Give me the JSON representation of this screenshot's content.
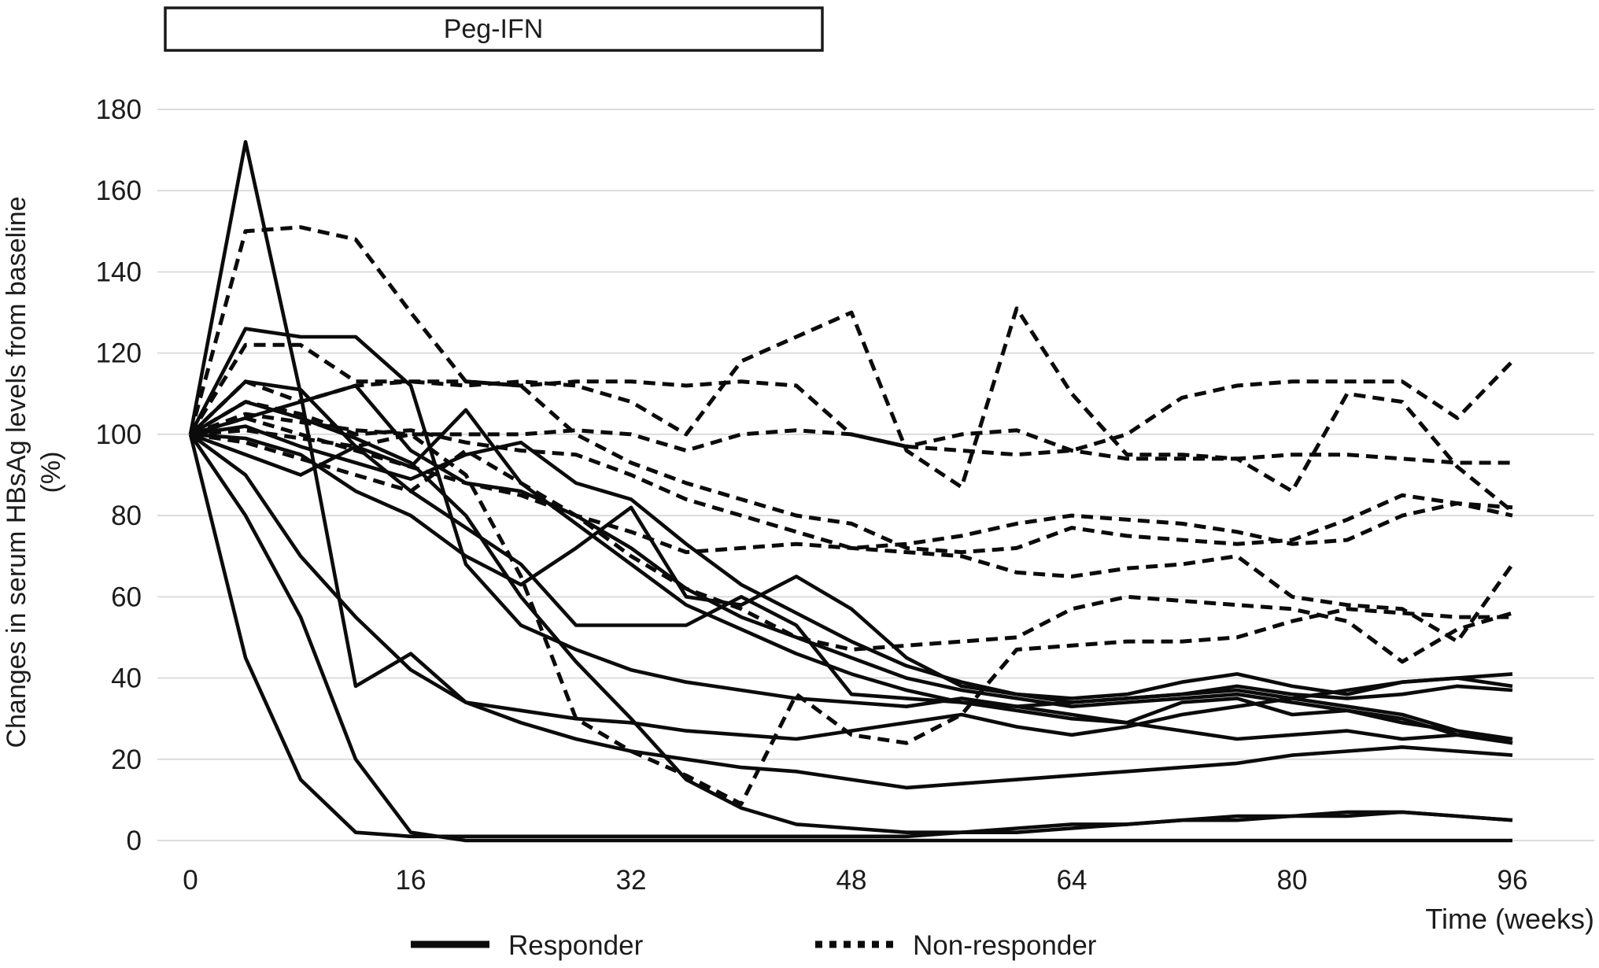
{
  "figure": {
    "treatment_label": "Peg-IFN",
    "treatment_box": {
      "covers_weeks_approx": [
        0,
        46
      ]
    },
    "y_axis": {
      "title_line1": "Changes in serum HBsAg levels from baseline",
      "title_line2": "(%)",
      "ticks": [
        0,
        20,
        40,
        60,
        80,
        100,
        120,
        140,
        160,
        180
      ],
      "min": 0,
      "max": 180
    },
    "x_axis": {
      "title": "Time (weeks)",
      "ticks": [
        0,
        16,
        32,
        48,
        64,
        80,
        96
      ],
      "min": 0,
      "max": 96
    },
    "legend": [
      {
        "label": "Responder",
        "style": "solid"
      },
      {
        "label": "Non-responder",
        "style": "dashed"
      }
    ],
    "colors": {
      "line": "#0b0b0b",
      "grid": "#dcdcdc",
      "text": "#1c1c1c",
      "background": "#ffffff"
    }
  },
  "chart_data": {
    "type": "line",
    "title": "",
    "xlabel": "Time (weeks)",
    "ylabel": "Changes in serum HBsAg levels from baseline (%)",
    "xlim": [
      0,
      96
    ],
    "ylim": [
      0,
      180
    ],
    "grid": true,
    "legend_position": "bottom",
    "x": [
      0,
      4,
      8,
      12,
      16,
      20,
      24,
      28,
      32,
      36,
      40,
      44,
      48,
      52,
      56,
      60,
      64,
      68,
      72,
      76,
      80,
      84,
      88,
      92,
      96
    ],
    "series": [
      {
        "name": "Responder 1",
        "group": "responder",
        "style": "solid",
        "values": [
          100,
          172,
          110,
          38,
          46,
          34,
          32,
          30,
          29,
          27,
          26,
          25,
          27,
          29,
          31,
          28,
          26,
          28,
          31,
          33,
          35,
          37,
          39,
          40,
          41
        ]
      },
      {
        "name": "Responder 2",
        "group": "responder",
        "style": "solid",
        "values": [
          100,
          126,
          124,
          124,
          112,
          68,
          53,
          47,
          42,
          39,
          37,
          35,
          34,
          33,
          35,
          33,
          31,
          29,
          34,
          35,
          31,
          32,
          29,
          27,
          25
        ]
      },
      {
        "name": "Responder 3",
        "group": "responder",
        "style": "solid",
        "values": [
          100,
          104,
          108,
          112,
          96,
          88,
          86,
          80,
          72,
          62,
          55,
          50,
          45,
          40,
          37,
          35,
          33,
          34,
          35,
          36,
          34,
          32,
          30,
          26,
          24
        ]
      },
      {
        "name": "Responder 4",
        "group": "responder",
        "style": "solid",
        "values": [
          100,
          95,
          90,
          97,
          92,
          106,
          88,
          78,
          68,
          58,
          52,
          46,
          41,
          37,
          34,
          32,
          30,
          29,
          27,
          25,
          26,
          27,
          25,
          26,
          25
        ]
      },
      {
        "name": "Responder 5",
        "group": "responder",
        "style": "solid",
        "values": [
          100,
          102,
          97,
          93,
          89,
          95,
          98,
          88,
          84,
          73,
          63,
          56,
          49,
          43,
          39,
          36,
          34,
          35,
          36,
          38,
          36,
          35,
          36,
          38,
          37
        ]
      },
      {
        "name": "Responder 6",
        "group": "responder",
        "style": "solid",
        "values": [
          100,
          99,
          95,
          86,
          80,
          70,
          63,
          72,
          82,
          60,
          58,
          65,
          57,
          45,
          38,
          36,
          35,
          36,
          39,
          41,
          38,
          36,
          39,
          40,
          38
        ]
      },
      {
        "name": "Responder 7",
        "group": "responder",
        "style": "solid",
        "values": [
          100,
          113,
          111,
          97,
          86,
          77,
          68,
          53,
          53,
          53,
          60,
          53,
          36,
          35,
          34,
          33,
          34,
          35,
          36,
          37,
          35,
          33,
          31,
          27,
          24
        ]
      },
      {
        "name": "Responder 8",
        "group": "responder",
        "style": "solid",
        "values": [
          100,
          45,
          15,
          2,
          1,
          1,
          1,
          1,
          1,
          1,
          1,
          1,
          1,
          1,
          2,
          2,
          3,
          4,
          5,
          6,
          6,
          7,
          7,
          6,
          5
        ]
      },
      {
        "name": "Responder 9",
        "group": "responder",
        "style": "solid",
        "values": [
          100,
          80,
          55,
          20,
          2,
          0,
          0,
          0,
          0,
          0,
          0,
          0,
          0,
          0,
          0,
          0,
          0,
          0,
          0,
          0,
          0,
          0,
          0,
          0,
          0
        ]
      },
      {
        "name": "Responder 10",
        "group": "responder",
        "style": "solid",
        "values": [
          100,
          90,
          70,
          55,
          42,
          34,
          29,
          25,
          22,
          20,
          18,
          17,
          15,
          13,
          14,
          15,
          16,
          17,
          18,
          19,
          21,
          22,
          23,
          22,
          21
        ]
      },
      {
        "name": "Responder 11",
        "group": "responder",
        "style": "solid",
        "values": [
          100,
          108,
          104,
          99,
          93,
          80,
          60,
          44,
          30,
          15,
          8,
          4,
          3,
          2,
          2,
          3,
          4,
          4,
          5,
          5,
          6,
          6,
          7,
          6,
          5
        ]
      },
      {
        "name": "Non-responder 1",
        "group": "non-responder",
        "style": "dashed",
        "values": [
          100,
          150,
          151,
          148,
          130,
          113,
          112,
          113,
          113,
          112,
          113,
          112,
          100,
          97,
          96,
          95,
          96,
          100,
          109,
          112,
          113,
          113,
          113,
          104,
          118
        ]
      },
      {
        "name": "Non-responder 2",
        "group": "non-responder",
        "style": "dashed",
        "values": [
          100,
          122,
          122,
          113,
          113,
          112,
          113,
          112,
          108,
          100,
          118,
          124,
          130,
          96,
          87,
          131,
          110,
          95,
          95,
          94,
          95,
          95,
          94,
          93,
          93
        ]
      },
      {
        "name": "Non-responder 3",
        "group": "non-responder",
        "style": "dashed",
        "values": [
          100,
          113,
          108,
          112,
          113,
          113,
          112,
          100,
          93,
          88,
          84,
          80,
          78,
          72,
          71,
          72,
          77,
          75,
          74,
          73,
          74,
          79,
          85,
          83,
          82
        ]
      },
      {
        "name": "Non-responder 4",
        "group": "non-responder",
        "style": "dashed",
        "values": [
          100,
          105,
          103,
          101,
          100,
          100,
          100,
          101,
          100,
          96,
          100,
          101,
          100,
          97,
          100,
          101,
          96,
          94,
          94,
          94,
          86,
          110,
          108,
          92,
          81
        ]
      },
      {
        "name": "Non-responder 5",
        "group": "non-responder",
        "style": "dashed",
        "values": [
          100,
          104,
          100,
          96,
          92,
          88,
          85,
          80,
          76,
          71,
          72,
          73,
          72,
          71,
          70,
          66,
          65,
          67,
          68,
          70,
          60,
          58,
          57,
          49,
          68
        ]
      },
      {
        "name": "Non-responder 6",
        "group": "non-responder",
        "style": "dashed",
        "values": [
          100,
          98,
          94,
          90,
          86,
          96,
          88,
          80,
          70,
          62,
          57,
          50,
          47,
          48,
          49,
          50,
          57,
          60,
          59,
          58,
          57,
          54,
          44,
          52,
          56
        ]
      },
      {
        "name": "Non-responder 7",
        "group": "non-responder",
        "style": "dashed",
        "values": [
          100,
          101,
          99,
          97,
          100,
          90,
          65,
          30,
          22,
          16,
          9,
          36,
          26,
          24,
          31,
          47,
          48,
          49,
          49,
          50,
          54,
          57,
          56,
          55,
          55
        ]
      },
      {
        "name": "Non-responder 8",
        "group": "non-responder",
        "style": "dashed",
        "values": [
          100,
          108,
          105,
          100,
          101,
          98,
          96,
          95,
          90,
          84,
          80,
          76,
          72,
          73,
          75,
          78,
          80,
          79,
          78,
          76,
          73,
          74,
          80,
          83,
          80
        ]
      }
    ]
  }
}
